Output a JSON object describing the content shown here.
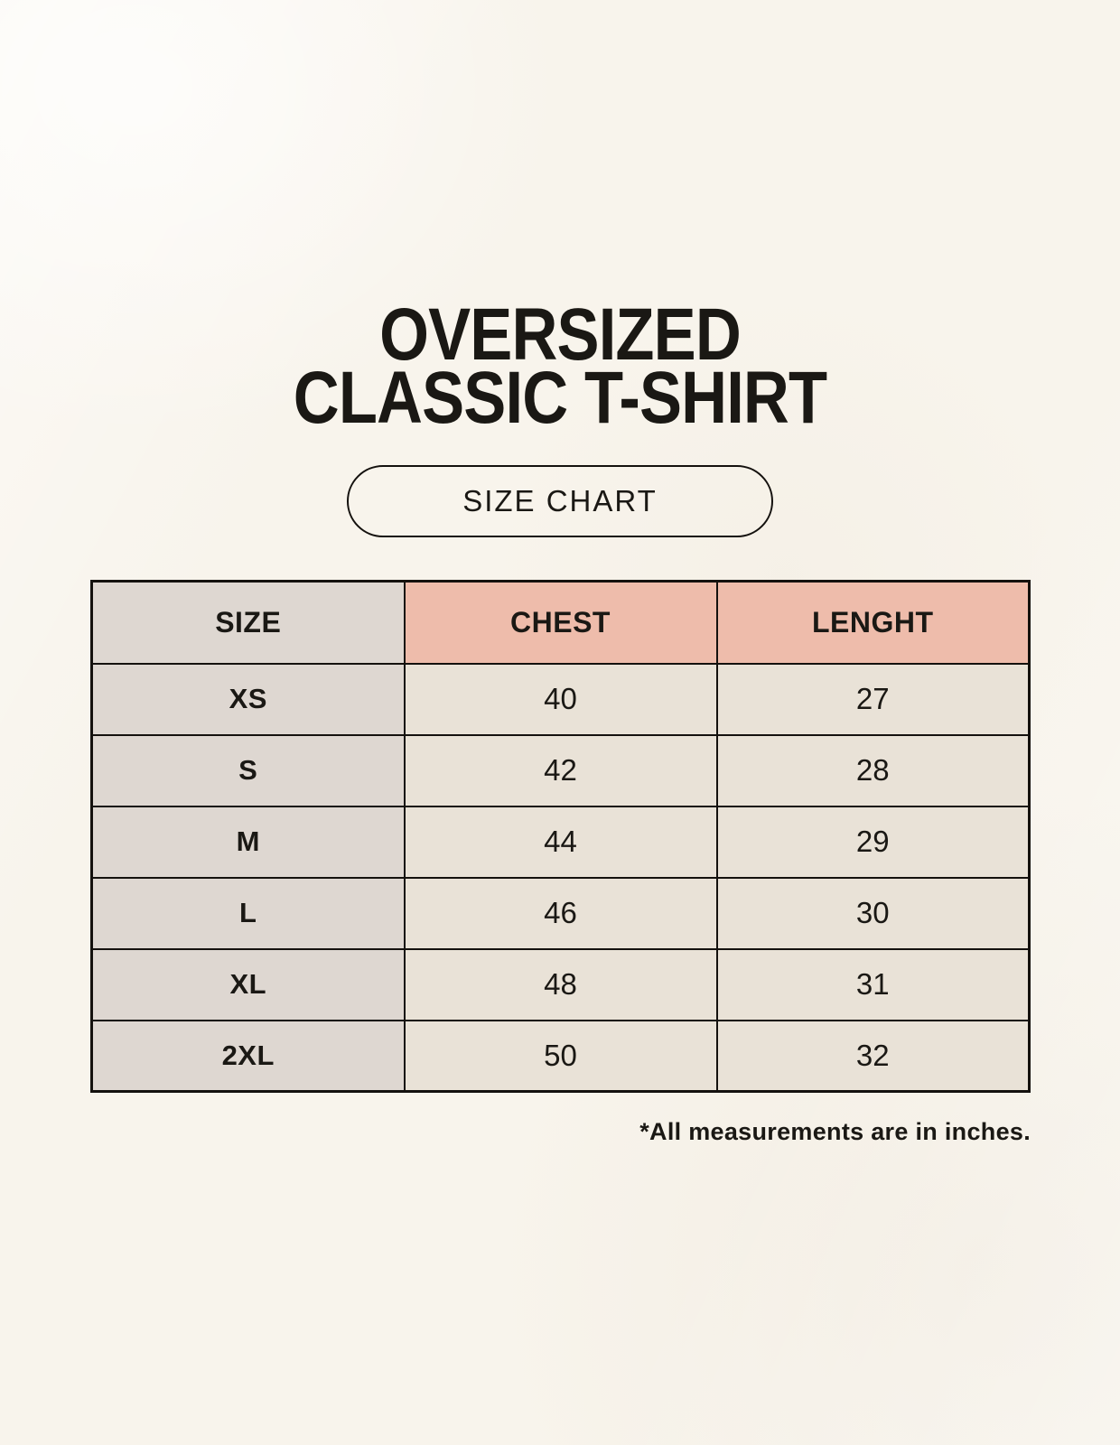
{
  "title": {
    "line1": "OVERSIZED",
    "line2": "CLASSIC T-SHIRT"
  },
  "size_chart_label": "SIZE CHART",
  "chart_data": {
    "type": "table",
    "columns": [
      "SIZE",
      "CHEST",
      "LENGHT"
    ],
    "rows": [
      [
        "XS",
        "40",
        "27"
      ],
      [
        "S",
        "42",
        "28"
      ],
      [
        "M",
        "44",
        "29"
      ],
      [
        "L",
        "46",
        "30"
      ],
      [
        "XL",
        "48",
        "31"
      ],
      [
        "2XL",
        "50",
        "32"
      ]
    ]
  },
  "footnote": "*All measurements are in inches.",
  "colors": {
    "background": "#f8f4ec",
    "header_size_bg": "#ded7d1",
    "header_measure_bg": "#eebcab",
    "size_col_bg": "#ded7d1",
    "data_cell_bg": "#e9e2d7",
    "border": "#14110e",
    "text": "#1a1814"
  }
}
